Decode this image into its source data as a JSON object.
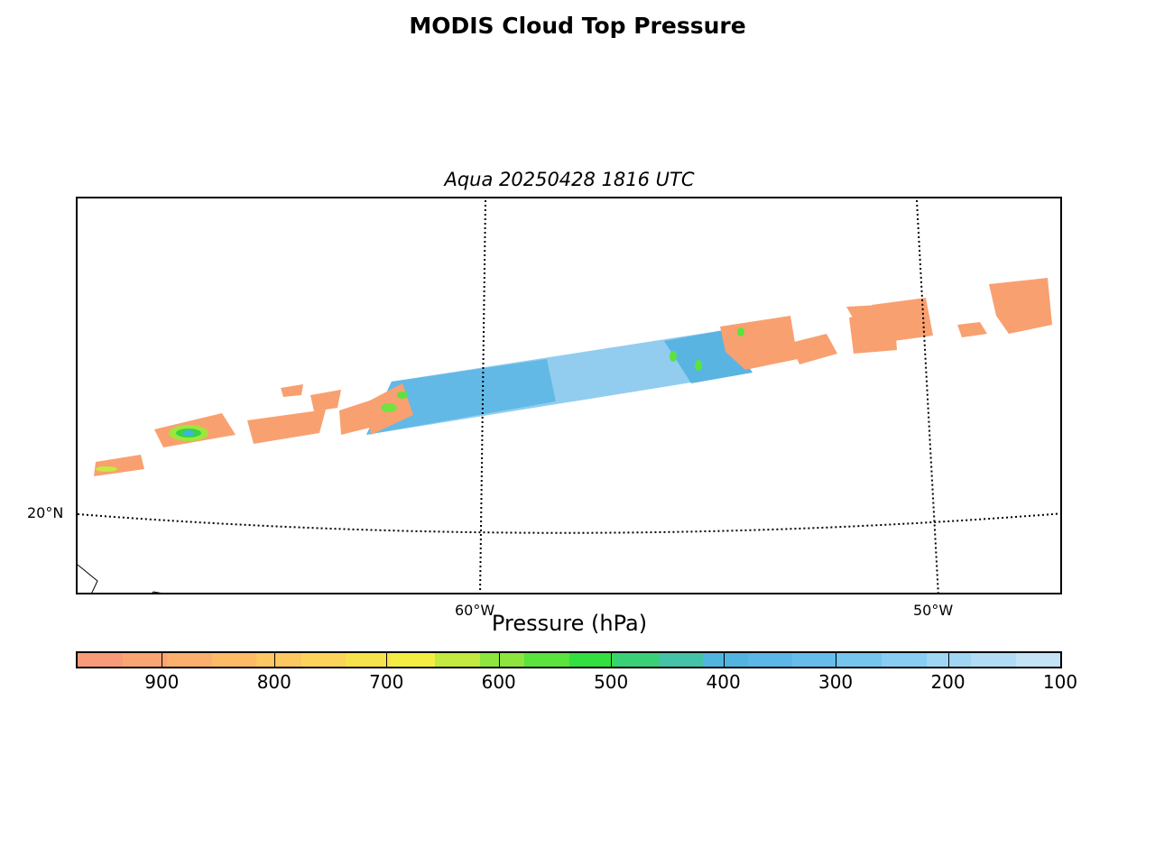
{
  "title": "MODIS Cloud Top Pressure",
  "subtitle": "Aqua 20250428 1816 UTC",
  "map": {
    "lat_labels": [
      {
        "text": "20°N",
        "value": 20
      }
    ],
    "lon_labels": [
      {
        "text": "60°W",
        "value": -60
      },
      {
        "text": "50°W",
        "value": -50
      }
    ]
  },
  "colorbar": {
    "label": "Pressure (hPa)",
    "ticks": [
      "900",
      "800",
      "700",
      "600",
      "500",
      "400",
      "300",
      "200",
      "100"
    ],
    "colors": [
      "#f99b78",
      "#fba573",
      "#fcb06e",
      "#fdbb68",
      "#fdc762",
      "#fdd45a",
      "#f8e24b",
      "#f4ee42",
      "#c2ea3f",
      "#8ee53e",
      "#5be33e",
      "#33e040",
      "#3ad176",
      "#45c3a8",
      "#52b5e0",
      "#5ab7e8",
      "#66bdeb",
      "#75c5ef",
      "#88cef2",
      "#9fd6f4",
      "#b1dcf5",
      "#c4e3f7"
    ]
  }
}
